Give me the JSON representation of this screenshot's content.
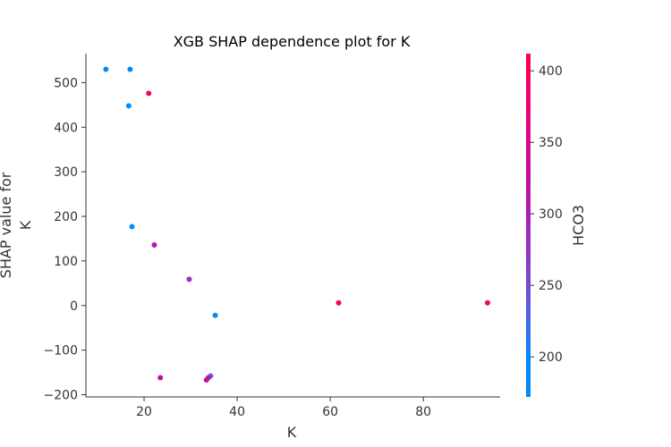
{
  "chart_data": {
    "type": "scatter",
    "title": "XGB SHAP dependence plot for K",
    "xlabel": "K",
    "ylabel_lines": [
      "SHAP value for",
      "K"
    ],
    "xlim": [
      7.5,
      96.5
    ],
    "ylim": [
      -205,
      565
    ],
    "xticks": [
      20,
      40,
      60,
      80
    ],
    "yticks": [
      -200,
      -100,
      0,
      100,
      200,
      300,
      400,
      500
    ],
    "grid": false,
    "colorbar": {
      "label": "HCO3",
      "range": [
        172,
        412
      ],
      "ticks": [
        200,
        250,
        300,
        350,
        400
      ],
      "color_low": "#008bfb",
      "color_mid": "#c20ea6",
      "color_high": "#ff0052"
    },
    "points": [
      {
        "x": 11.8,
        "y": 530,
        "c": 180
      },
      {
        "x": 17.0,
        "y": 530,
        "c": 180
      },
      {
        "x": 16.7,
        "y": 448,
        "c": 180
      },
      {
        "x": 21.0,
        "y": 476,
        "c": 395
      },
      {
        "x": 17.4,
        "y": 177,
        "c": 180
      },
      {
        "x": 22.2,
        "y": 136,
        "c": 315
      },
      {
        "x": 29.7,
        "y": 59,
        "c": 280
      },
      {
        "x": 35.3,
        "y": -22,
        "c": 180
      },
      {
        "x": 23.5,
        "y": -162,
        "c": 320
      },
      {
        "x": 34.3,
        "y": -158,
        "c": 240
      },
      {
        "x": 33.8,
        "y": -162,
        "c": 295
      },
      {
        "x": 33.4,
        "y": -167,
        "c": 320
      },
      {
        "x": 61.8,
        "y": 6,
        "c": 395
      },
      {
        "x": 93.8,
        "y": 6,
        "c": 395
      }
    ]
  }
}
